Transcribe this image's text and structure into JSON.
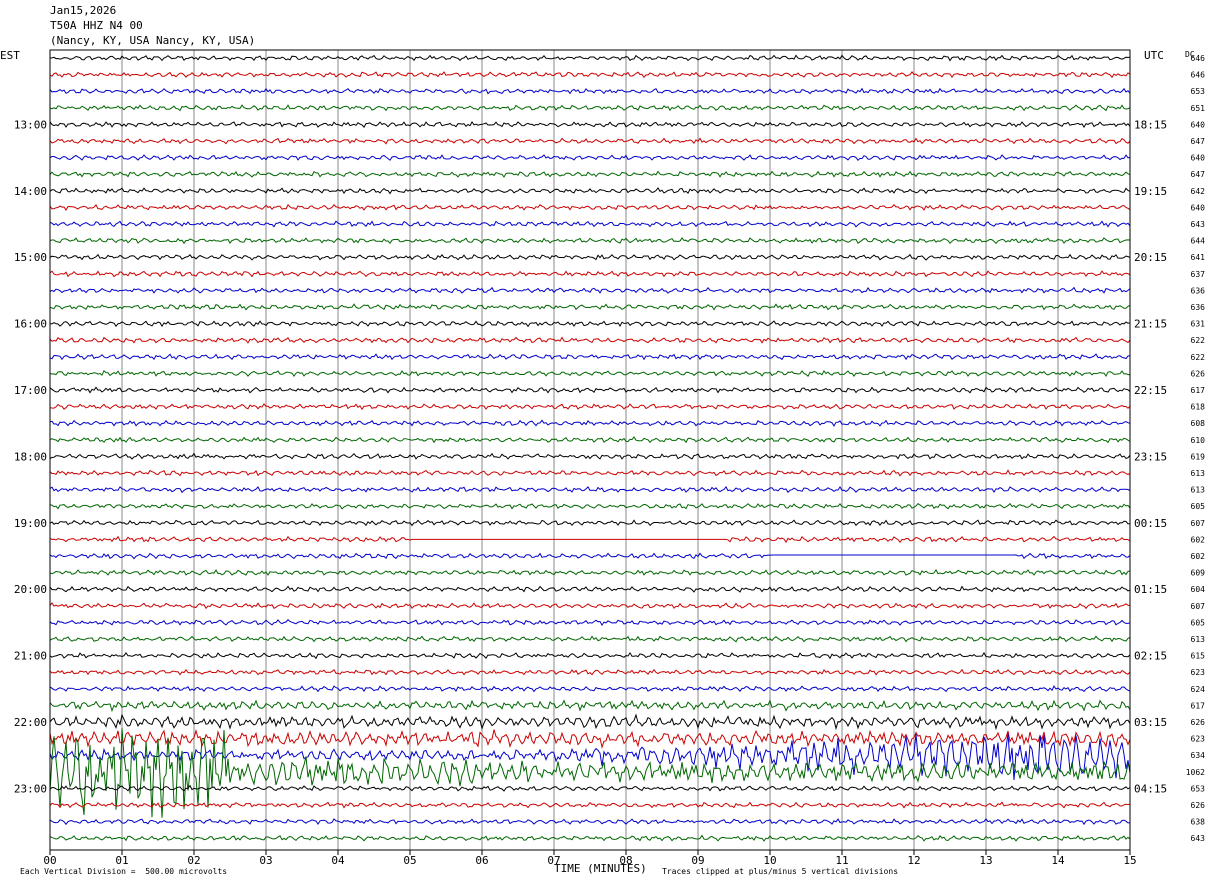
{
  "header": {
    "date": "Jan15,2026",
    "station": "T50A HHZ N4 00",
    "location": "(Nancy, KY, USA Nancy, KY, USA)"
  },
  "labels": {
    "left_timezone": "EST",
    "right_timezone": "UTC",
    "dc_header": "DC",
    "xlabel": "TIME (MINUTES)",
    "scale_note": "Each Vertical Division =  500.00 microvolts",
    "clip_note": "Traces clipped at plus/minus 5 vertical divisions"
  },
  "chart_data": {
    "type": "line",
    "title": "T50A HHZ N4 00",
    "xlabel": "TIME (MINUTES)",
    "xlim": [
      0,
      15
    ],
    "x_ticks": [
      "00",
      "01",
      "02",
      "03",
      "04",
      "05",
      "06",
      "07",
      "08",
      "09",
      "10",
      "11",
      "12",
      "13",
      "14",
      "15"
    ],
    "trace_count": 48,
    "trace_colors": [
      "#000000",
      "#cc0000",
      "#0000cc",
      "#006600"
    ],
    "left_hour_labels": [
      "13:00",
      "14:00",
      "15:00",
      "16:00",
      "17:00",
      "18:00",
      "19:00",
      "20:00",
      "21:00",
      "22:00",
      "23:00"
    ],
    "right_hour_labels": [
      "18:15",
      "19:15",
      "20:15",
      "21:15",
      "22:15",
      "23:15",
      "00:15",
      "01:15",
      "02:15",
      "03:15",
      "04:15"
    ],
    "hour_label_start_trace": 4,
    "dc_values": [
      646,
      646,
      653,
      651,
      640,
      647,
      640,
      647,
      642,
      640,
      643,
      644,
      641,
      637,
      636,
      636,
      631,
      622,
      622,
      626,
      617,
      618,
      608,
      610,
      619,
      613,
      613,
      605,
      607,
      602,
      602,
      609,
      604,
      607,
      605,
      613,
      615,
      623,
      624,
      617,
      626,
      623,
      634,
      1062,
      653,
      626,
      638,
      643
    ],
    "gaps": [
      {
        "trace": 29,
        "from_min": 5.0,
        "to_min": 9.4
      },
      {
        "trace": 30,
        "from_min": 10.0,
        "to_min": 13.4
      }
    ],
    "grid": true
  }
}
